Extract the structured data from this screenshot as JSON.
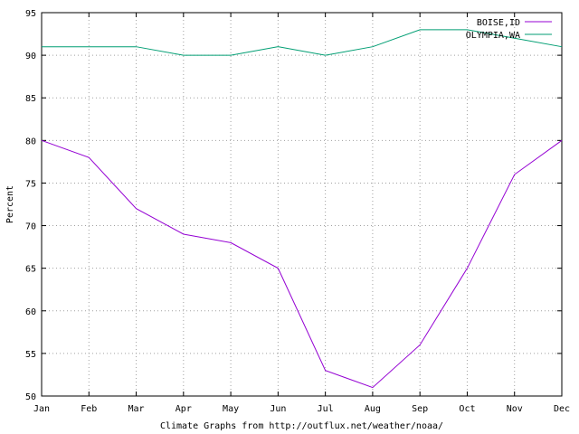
{
  "chart_data": {
    "type": "line",
    "title": "",
    "xlabel": "Climate Graphs from http://outflux.net/weather/noaa/",
    "ylabel": "Percent",
    "categories": [
      "Jan",
      "Feb",
      "Mar",
      "Apr",
      "May",
      "Jun",
      "Jul",
      "Aug",
      "Sep",
      "Oct",
      "Nov",
      "Dec"
    ],
    "ylim": [
      50,
      95
    ],
    "yticks": [
      50,
      55,
      60,
      65,
      70,
      75,
      80,
      85,
      90,
      95
    ],
    "grid": true,
    "legend_position": "top-right",
    "series": [
      {
        "name": "BOISE,ID",
        "color": "#9400d3",
        "values": [
          80,
          78,
          72,
          69,
          68,
          65,
          53,
          51,
          56,
          65,
          76,
          80
        ]
      },
      {
        "name": "OLYMPIA,WA",
        "color": "#009e73",
        "values": [
          91,
          91,
          91,
          90,
          90,
          91,
          90,
          91,
          93,
          93,
          92,
          91
        ]
      }
    ]
  }
}
